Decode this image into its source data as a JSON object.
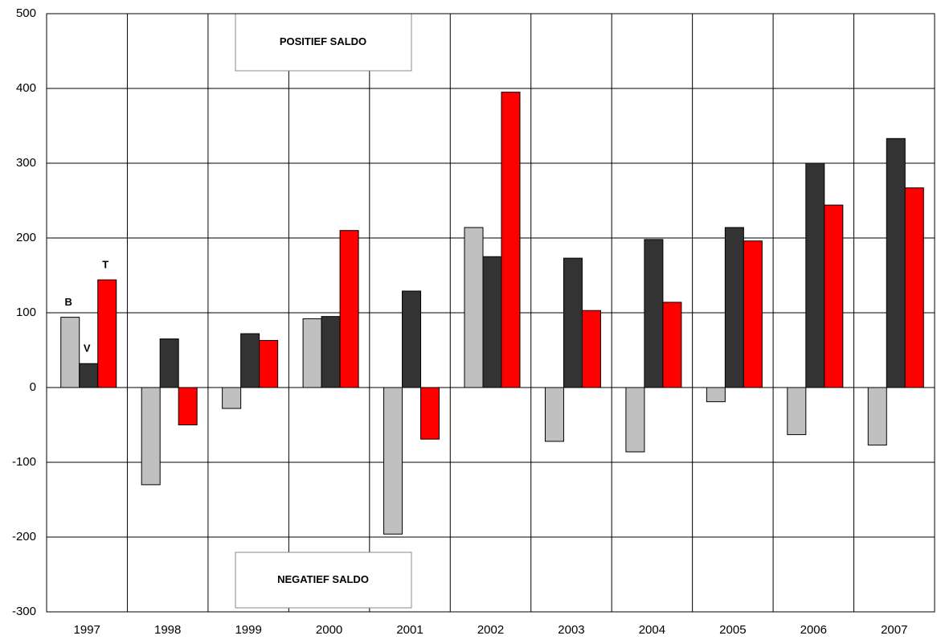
{
  "chart_data": {
    "type": "bar",
    "categories": [
      "1997",
      "1998",
      "1999",
      "2000",
      "2001",
      "2002",
      "2003",
      "2004",
      "2005",
      "2006",
      "2007"
    ],
    "series": [
      {
        "name": "B",
        "color": "#c0c0c0",
        "values": [
          94,
          -130,
          -28,
          92,
          -196,
          214,
          -72,
          -86,
          -19,
          -63,
          -77
        ]
      },
      {
        "name": "V",
        "color": "#333333",
        "values": [
          32,
          65,
          72,
          95,
          129,
          175,
          173,
          198,
          214,
          300,
          333
        ]
      },
      {
        "name": "T",
        "color": "#ff0000",
        "values": [
          144,
          -50,
          63,
          210,
          -69,
          395,
          103,
          114,
          196,
          244,
          267
        ]
      }
    ],
    "annotations": [
      "POSITIEF SALDO",
      "NEGATIEF SALDO"
    ],
    "ylim": [
      -300,
      500
    ],
    "yticks": [
      -300,
      -200,
      -100,
      0,
      100,
      200,
      300,
      400,
      500
    ],
    "grid": true
  }
}
